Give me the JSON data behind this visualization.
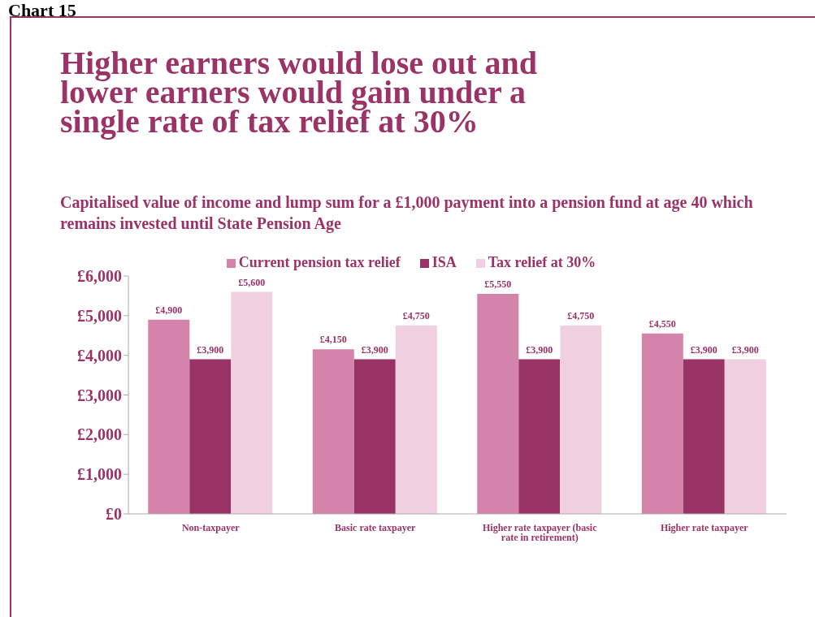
{
  "chart_data": {
    "type": "bar",
    "title": "Higher earners would lose out and lower earners would gain under a single rate of tax relief at 30%",
    "subtitle": "Capitalised value of income and lump sum for a £1,000 payment into a pension fund at age 40 which remains invested until State Pension Age",
    "annotations": [
      "Chart 15"
    ],
    "categories": [
      "Non-taxpayer",
      "Basic rate taxpayer",
      "Higher rate taxpayer (basic rate in retirement)",
      "Higher rate taxpayer"
    ],
    "series": [
      {
        "name": "Current pension tax relief",
        "color": "#d484aa",
        "values": [
          4900,
          4150,
          5550,
          4550
        ],
        "value_labels": [
          "£4,900",
          "£4,150",
          "£5,550",
          "£4,550"
        ]
      },
      {
        "name": "ISA",
        "color": "#993366",
        "values": [
          3900,
          3900,
          3900,
          3900
        ],
        "value_labels": [
          "£3,900",
          "£3,900",
          "£3,900",
          "£3,900"
        ]
      },
      {
        "name": "Tax relief at 30%",
        "color": "#f0d0e0",
        "values": [
          5600,
          4750,
          4750,
          3900
        ],
        "value_labels": [
          "£5,600",
          "£4,750",
          "£4,750",
          "£3,900"
        ]
      }
    ],
    "ylim": [
      0,
      6000
    ],
    "yticks": [
      {
        "value": 0,
        "label": "£0"
      },
      {
        "value": 1000,
        "label": "£1,000"
      },
      {
        "value": 2000,
        "label": "£2,000"
      },
      {
        "value": 3000,
        "label": "£3,000"
      },
      {
        "value": 4000,
        "label": "£4,000"
      },
      {
        "value": 5000,
        "label": "£5,000"
      },
      {
        "value": 6000,
        "label": "£6,000"
      }
    ],
    "grid": false,
    "legend": "top"
  }
}
